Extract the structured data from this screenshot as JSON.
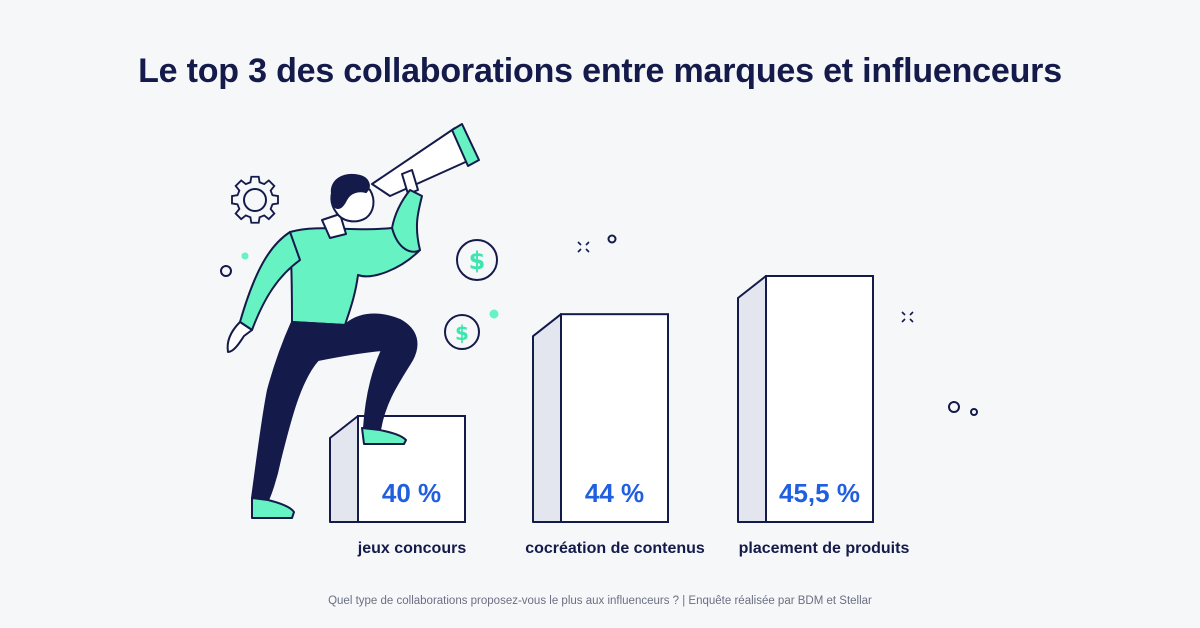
{
  "title": "Le top 3 des collaborations entre marques et influenceurs",
  "footnote": "Quel type de collaborations proposez-vous le plus aux influenceurs ? | Enquête réalisée par BDM et Stellar",
  "colors": {
    "background": "#f6f7f9",
    "navy": "#141a4a",
    "accent_blue": "#1f5fe0",
    "mint": "#66f2c2"
  },
  "icons": [
    "gear-icon",
    "dollar-coin-icon",
    "telescope-icon",
    "sparkle-icon"
  ],
  "chart_data": {
    "type": "bar",
    "categories": [
      "jeux concours",
      "cocréation de contenus",
      "placement de produits"
    ],
    "values": [
      40,
      44,
      45.5
    ],
    "value_labels": [
      "40 %",
      "44 %",
      "45,5 %"
    ],
    "unit": "%",
    "title": "Le top 3 des collaborations entre marques et influenceurs",
    "xlabel": "",
    "ylabel": "",
    "grid": false,
    "legend": "none"
  }
}
